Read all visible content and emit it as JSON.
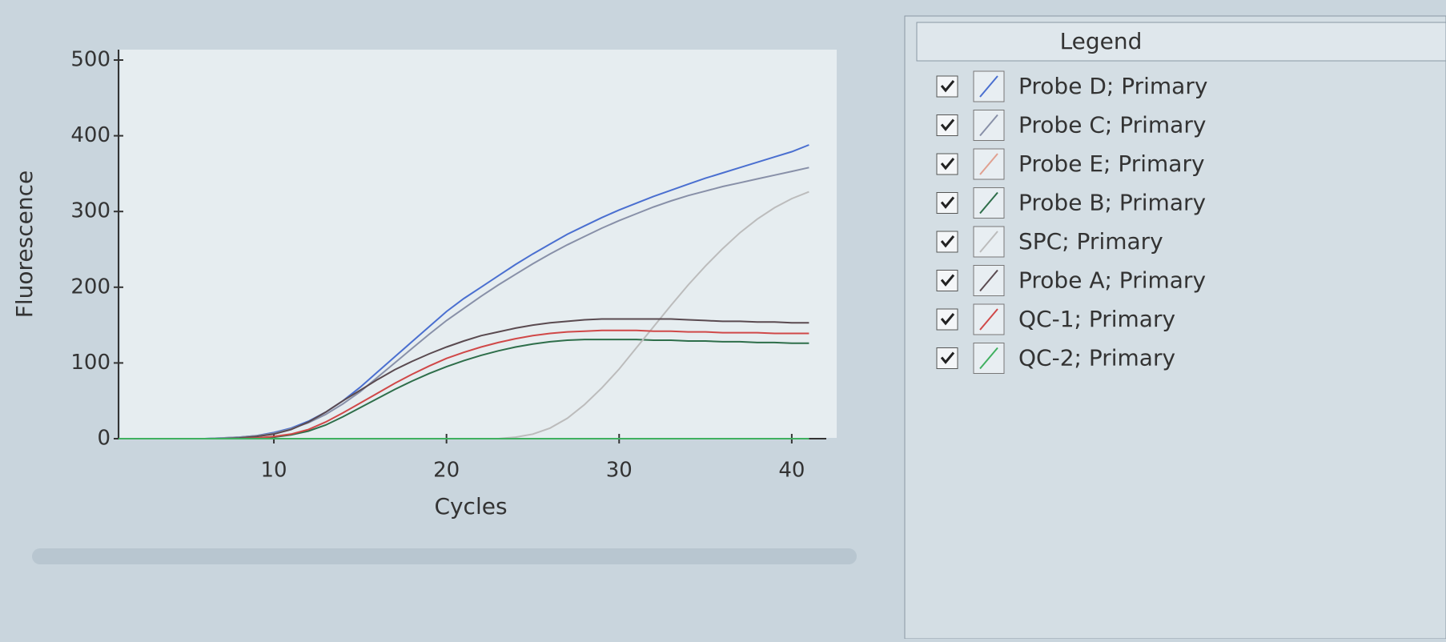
{
  "chart_data": {
    "type": "line",
    "x_label": "Cycles",
    "y_label": "Fluorescence",
    "legend_title": "Legend",
    "x": [
      1,
      2,
      3,
      4,
      5,
      6,
      7,
      8,
      9,
      10,
      11,
      12,
      13,
      14,
      15,
      16,
      17,
      18,
      19,
      20,
      21,
      22,
      23,
      24,
      25,
      26,
      27,
      28,
      29,
      30,
      31,
      32,
      33,
      34,
      35,
      36,
      37,
      38,
      39,
      40,
      41
    ],
    "xlim": [
      1,
      42
    ],
    "xticks": [
      10,
      20,
      30,
      40
    ],
    "ylim": [
      0,
      500
    ],
    "yticks": [
      0,
      100,
      200,
      300,
      400,
      500
    ],
    "series": [
      {
        "name": "Probe D; Primary",
        "color": "#4a6fd0",
        "values": [
          0,
          0,
          0,
          0,
          0,
          0,
          1,
          2,
          4,
          8,
          14,
          23,
          35,
          50,
          68,
          88,
          108,
          128,
          148,
          168,
          185,
          200,
          215,
          230,
          244,
          257,
          270,
          281,
          292,
          302,
          311,
          320,
          328,
          336,
          344,
          351,
          358,
          365,
          372,
          379,
          388
        ]
      },
      {
        "name": "Probe C; Primary",
        "color": "#8890a8",
        "values": [
          0,
          0,
          0,
          0,
          0,
          0,
          1,
          2,
          4,
          7,
          13,
          21,
          32,
          46,
          62,
          81,
          100,
          119,
          138,
          156,
          172,
          188,
          203,
          217,
          231,
          244,
          256,
          267,
          278,
          288,
          297,
          306,
          314,
          321,
          327,
          333,
          338,
          343,
          348,
          353,
          358
        ]
      },
      {
        "name": "Probe E; Primary",
        "color": "#e0a090",
        "values": [
          0,
          0,
          0,
          0,
          0,
          0,
          0,
          0,
          0,
          0,
          0,
          0,
          0,
          0,
          0,
          0,
          0,
          0,
          0,
          0,
          0,
          0,
          0,
          0,
          0,
          0,
          0,
          0,
          0,
          0,
          0,
          0,
          0,
          0,
          0,
          0,
          0,
          0,
          0,
          0,
          0
        ]
      },
      {
        "name": "Probe B; Primary",
        "color": "#2e6e4a",
        "values": [
          0,
          0,
          0,
          0,
          0,
          0,
          0,
          0,
          1,
          2,
          5,
          10,
          18,
          29,
          41,
          53,
          65,
          76,
          86,
          95,
          103,
          110,
          116,
          121,
          125,
          128,
          130,
          131,
          131,
          131,
          131,
          130,
          130,
          129,
          129,
          128,
          128,
          127,
          127,
          126,
          126
        ]
      },
      {
        "name": "SPC; Primary",
        "color": "#bcbcbc",
        "values": [
          0,
          0,
          0,
          0,
          0,
          0,
          0,
          0,
          0,
          0,
          0,
          0,
          0,
          0,
          0,
          0,
          0,
          0,
          0,
          0,
          0,
          0,
          0,
          2,
          6,
          14,
          27,
          45,
          67,
          92,
          120,
          148,
          176,
          203,
          228,
          251,
          272,
          290,
          305,
          317,
          326
        ]
      },
      {
        "name": "Probe A; Primary",
        "color": "#5a4a50",
        "values": [
          0,
          0,
          0,
          0,
          0,
          0,
          0,
          1,
          3,
          6,
          12,
          22,
          35,
          50,
          64,
          78,
          91,
          102,
          112,
          121,
          129,
          136,
          141,
          146,
          150,
          153,
          155,
          157,
          158,
          158,
          158,
          158,
          158,
          157,
          156,
          155,
          155,
          154,
          154,
          153,
          153
        ]
      },
      {
        "name": "QC-1; Primary",
        "color": "#d04848",
        "values": [
          0,
          0,
          0,
          0,
          0,
          0,
          0,
          0,
          1,
          3,
          6,
          12,
          22,
          34,
          47,
          60,
          73,
          85,
          96,
          106,
          114,
          121,
          127,
          132,
          136,
          139,
          141,
          142,
          143,
          143,
          143,
          142,
          142,
          141,
          141,
          140,
          140,
          140,
          139,
          139,
          139
        ]
      },
      {
        "name": "QC-2; Primary",
        "color": "#40b060",
        "values": [
          0,
          0,
          0,
          0,
          0,
          0,
          0,
          0,
          0,
          0,
          0,
          0,
          0,
          0,
          0,
          0,
          0,
          0,
          0,
          0,
          0,
          0,
          0,
          0,
          0,
          0,
          0,
          0,
          0,
          0,
          0,
          0,
          0,
          0,
          0,
          0,
          0,
          0,
          0,
          0,
          0
        ]
      }
    ]
  }
}
